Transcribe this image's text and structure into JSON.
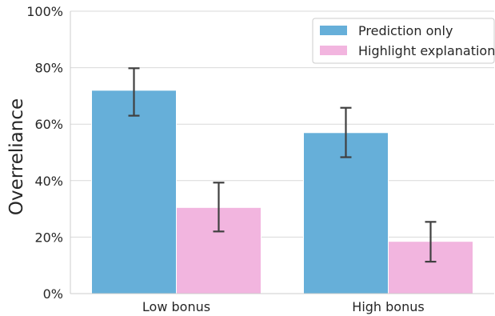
{
  "chart_data": {
    "type": "bar",
    "title": "",
    "xlabel": "",
    "ylabel": "Overreliance",
    "ylim": [
      0,
      100
    ],
    "yticks": [
      "0%",
      "20%",
      "40%",
      "60%",
      "80%",
      "100%"
    ],
    "ytick_values": [
      0,
      20,
      40,
      60,
      80,
      100
    ],
    "categories": [
      "Low bonus",
      "High bonus"
    ],
    "series": [
      {
        "name": "Prediction only",
        "color": "#66afd9",
        "values": [
          72,
          57
        ],
        "err_low": [
          63,
          48.3
        ],
        "err_high": [
          79.8,
          65.8
        ]
      },
      {
        "name": "Highlight explanation",
        "color": "#f2b5df",
        "values": [
          30.5,
          18.5
        ],
        "err_low": [
          22,
          11.3
        ],
        "err_high": [
          39.3,
          25.4
        ]
      }
    ],
    "grid": "horizontal",
    "legend_position": "top-right"
  }
}
